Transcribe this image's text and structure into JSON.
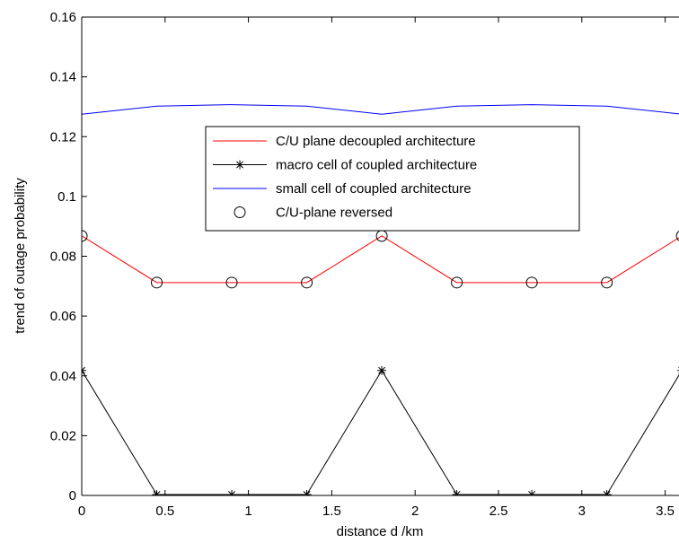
{
  "chart_data": {
    "type": "line",
    "title": "",
    "xlabel": "distance d  /km",
    "ylabel": "trend of outage probability",
    "xlim": [
      0,
      3.6
    ],
    "ylim": [
      0,
      0.16
    ],
    "xticks": [
      0,
      0.5,
      1,
      1.5,
      2,
      2.5,
      3,
      3.5
    ],
    "xtick_labels": [
      "0",
      "0.5",
      "1",
      "1.5",
      "2",
      "2.5",
      "3",
      "3.5"
    ],
    "yticks": [
      0,
      0.02,
      0.04,
      0.06,
      0.08,
      0.1,
      0.12,
      0.14,
      0.16
    ],
    "ytick_labels": [
      "0",
      "0.02",
      "0.04",
      "0.06",
      "0.08",
      "0.1",
      "0.12",
      "0.14",
      "0.16"
    ],
    "grid": false,
    "legend_position": "upper-center",
    "x": [
      0,
      0.45,
      0.9,
      1.35,
      1.8,
      2.25,
      2.7,
      3.15,
      3.6
    ],
    "series": [
      {
        "name": "C/U plane decoupled architecture",
        "color": "#ff0000",
        "marker": "none",
        "values": [
          0.0868,
          0.0712,
          0.0712,
          0.0712,
          0.0868,
          0.0712,
          0.0712,
          0.0712,
          0.0868
        ]
      },
      {
        "name": "macro cell of coupled architecture",
        "color": "#000000",
        "marker": "star",
        "values": [
          0.0418,
          0.0003,
          0.0003,
          0.0003,
          0.0418,
          0.0003,
          0.0003,
          0.0003,
          0.0418
        ]
      },
      {
        "name": "small cell of coupled architecture",
        "color": "#0000ff",
        "marker": "none",
        "values": [
          0.1275,
          0.1302,
          0.1307,
          0.1302,
          0.1275,
          0.1302,
          0.1307,
          0.1302,
          0.1275
        ]
      },
      {
        "name": "C/U-plane reversed",
        "color": "#000000",
        "marker": "circle",
        "line": "none",
        "values": [
          0.0868,
          0.0712,
          0.0712,
          0.0712,
          0.0868,
          0.0712,
          0.0712,
          0.0712,
          0.0868
        ]
      }
    ]
  }
}
